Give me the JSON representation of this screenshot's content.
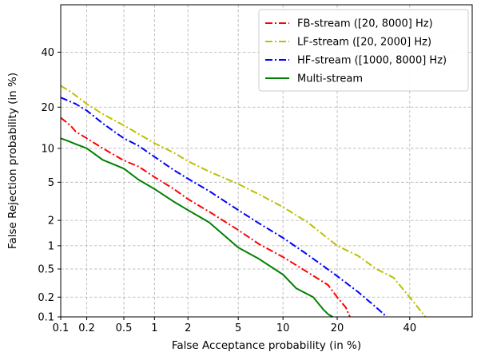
{
  "chart_data": {
    "type": "line",
    "title": "",
    "xlabel": "False Acceptance probability (in %)",
    "ylabel": "False Rejection probability (in %)",
    "scale": "normal-deviate (DET)",
    "grid": true,
    "legend_position": "top-right",
    "xlim": [
      0.1,
      60
    ],
    "ylim": [
      0.1,
      60
    ],
    "x_ticks": [
      0.1,
      0.2,
      0.5,
      1,
      2,
      5,
      10,
      20,
      40
    ],
    "x_tick_labels": [
      "0.1",
      "0.2",
      "0.5",
      "1",
      "2",
      "5",
      "10",
      "20",
      "40"
    ],
    "y_ticks": [
      0.1,
      0.2,
      0.5,
      1,
      2,
      5,
      10,
      20,
      40
    ],
    "y_tick_labels": [
      "0.1",
      "0.2",
      "0.5",
      "1",
      "2",
      "5",
      "10",
      "20",
      "40"
    ],
    "series": [
      {
        "name": "FB-stream ([20, 8000] Hz)",
        "color": "#ff0000",
        "dash": "dashdot",
        "x": [
          0.1,
          0.13,
          0.15,
          0.2,
          0.3,
          0.5,
          0.7,
          1,
          1.5,
          2,
          3,
          5,
          7,
          10,
          14,
          18,
          20,
          22,
          23
        ],
        "y": [
          17,
          15,
          13.5,
          12,
          10,
          7.9,
          7,
          5.6,
          4.3,
          3.4,
          2.5,
          1.55,
          1.05,
          0.72,
          0.45,
          0.3,
          0.2,
          0.14,
          0.1
        ]
      },
      {
        "name": "LF-stream ([20, 2000] Hz)",
        "color": "#bfbf00",
        "dash": "dashdot",
        "x": [
          0.1,
          0.13,
          0.2,
          0.3,
          0.5,
          0.7,
          1,
          1.5,
          2,
          3,
          5,
          7,
          10,
          14,
          20,
          25,
          30,
          35,
          40,
          45
        ],
        "y": [
          27,
          25,
          21,
          18,
          15,
          13,
          11,
          9.2,
          7.8,
          6.3,
          4.8,
          3.8,
          2.8,
          1.9,
          1.0,
          0.75,
          0.5,
          0.38,
          0.2,
          0.1
        ]
      },
      {
        "name": "HF-stream ([1000, 8000] Hz)",
        "color": "#0000ff",
        "dash": "dashdot",
        "x": [
          0.1,
          0.15,
          0.2,
          0.3,
          0.5,
          0.7,
          1,
          1.5,
          2,
          3,
          5,
          7,
          10,
          14,
          20,
          25,
          30,
          33
        ],
        "y": [
          23,
          21,
          19,
          15.5,
          12,
          10.5,
          8.5,
          6.5,
          5.4,
          4.1,
          2.6,
          1.85,
          1.25,
          0.77,
          0.4,
          0.24,
          0.14,
          0.1
        ]
      },
      {
        "name": "Multi-stream",
        "color": "#008000",
        "dash": "solid",
        "x": [
          0.1,
          0.12,
          0.15,
          0.2,
          0.3,
          0.5,
          0.7,
          1,
          1.5,
          2,
          3,
          5,
          7,
          10,
          12,
          15,
          17,
          18,
          19
        ],
        "y": [
          12,
          11.5,
          10.8,
          10,
          8,
          6.7,
          5.3,
          4.3,
          3.2,
          2.6,
          1.9,
          0.95,
          0.68,
          0.42,
          0.27,
          0.2,
          0.13,
          0.11,
          0.1
        ]
      }
    ]
  }
}
